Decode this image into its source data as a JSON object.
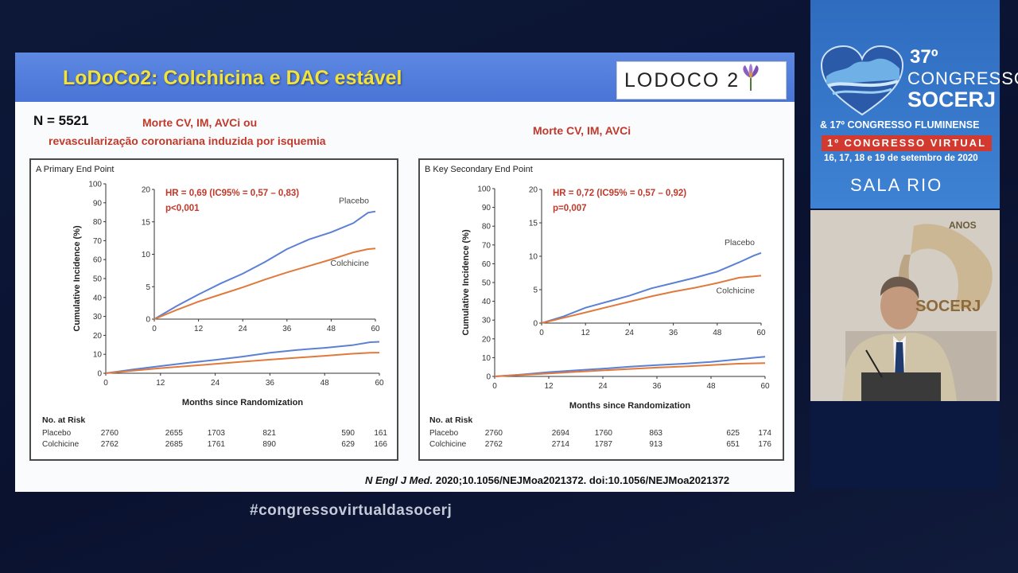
{
  "slide": {
    "title": "LoDoCo2: Colchicina e DAC estável",
    "logo_text": "LODOCO 2",
    "n_label": "N = 5521",
    "endpoint_primary_line1": "Morte CV, IM, AVCi ou",
    "endpoint_primary_line2": "revascularização coronariana induzida por isquemia",
    "endpoint_secondary": "Morte CV, IM, AVCi",
    "citation_journal": "N Engl J Med.",
    "citation_rest": " 2020;10.1056/NEJMoa2021372. doi:10.1056/NEJMoa2021372"
  },
  "chart_data": [
    {
      "type": "line",
      "title": "A  Primary End Point",
      "xlabel": "Months since Randomization",
      "ylabel": "Cumulative Incidence (%)",
      "xlim": [
        0,
        60
      ],
      "ylim": [
        0,
        100
      ],
      "x_ticks": [
        0,
        12,
        24,
        36,
        48,
        60
      ],
      "y_ticks": [
        0,
        10,
        20,
        30,
        40,
        50,
        60,
        70,
        80,
        90,
        100
      ],
      "inset": {
        "ylim": [
          0,
          20
        ],
        "y_ticks": [
          0,
          5,
          10,
          15,
          20
        ],
        "hr_text": "HR = 0,69 (IC95% = 0,57 – 0,83)",
        "p_text": "p<0,001"
      },
      "x": [
        0,
        6,
        12,
        18,
        24,
        30,
        36,
        42,
        48,
        54,
        58,
        60
      ],
      "series": [
        {
          "name": "Placebo",
          "color": "#5b80d4",
          "values": [
            0,
            2.0,
            3.8,
            5.5,
            7.0,
            8.8,
            10.8,
            12.3,
            13.4,
            14.8,
            16.4,
            16.6
          ]
        },
        {
          "name": "Colchicine",
          "color": "#e07a3c",
          "values": [
            0,
            1.4,
            2.7,
            3.8,
            4.9,
            6.1,
            7.2,
            8.2,
            9.2,
            10.3,
            10.8,
            10.9
          ]
        }
      ],
      "at_risk": {
        "header": "No. at Risk",
        "rows": [
          {
            "name": "Placebo",
            "values": [
              "2760",
              "2655",
              "1703",
              "821",
              "590",
              "161"
            ]
          },
          {
            "name": "Colchicine",
            "values": [
              "2762",
              "2685",
              "1761",
              "890",
              "629",
              "166"
            ]
          }
        ]
      }
    },
    {
      "type": "line",
      "title": "B  Key Secondary End Point",
      "xlabel": "Months since Randomization",
      "ylabel": "Cumulative Incidence (%)",
      "xlim": [
        0,
        60
      ],
      "ylim": [
        0,
        100
      ],
      "x_ticks": [
        0,
        12,
        24,
        36,
        48,
        60
      ],
      "y_ticks": [
        0,
        10,
        20,
        30,
        40,
        50,
        60,
        70,
        80,
        90,
        100
      ],
      "inset": {
        "ylim": [
          0,
          20
        ],
        "y_ticks": [
          0,
          5,
          10,
          15,
          20
        ],
        "hr_text": "HR = 0,72 (IC95% = 0,57 – 0,92)",
        "p_text": "p=0,007"
      },
      "x": [
        0,
        6,
        12,
        18,
        24,
        30,
        36,
        42,
        48,
        54,
        58,
        60
      ],
      "series": [
        {
          "name": "Placebo",
          "color": "#5b80d4",
          "values": [
            0,
            1.0,
            2.3,
            3.2,
            4.1,
            5.2,
            6.0,
            6.8,
            7.7,
            9.1,
            10.1,
            10.5
          ]
        },
        {
          "name": "Colchicine",
          "color": "#e07a3c",
          "values": [
            0,
            0.8,
            1.6,
            2.4,
            3.2,
            4.0,
            4.7,
            5.3,
            6.0,
            6.8,
            7.0,
            7.1
          ]
        }
      ],
      "at_risk": {
        "header": "No. at Risk",
        "rows": [
          {
            "name": "Placebo",
            "values": [
              "2760",
              "2694",
              "1760",
              "863",
              "625",
              "174"
            ]
          },
          {
            "name": "Colchicine",
            "values": [
              "2762",
              "2714",
              "1787",
              "913",
              "651",
              "176"
            ]
          }
        ]
      }
    }
  ],
  "footer": {
    "hashtag": "#congressovirtualdasocerj"
  },
  "sidebar": {
    "edition": "37º",
    "congresso": "CONGRESSO",
    "socerj": "SOCERJ",
    "fluminense": "& 17º CONGRESSO FLUMINENSE",
    "virtual": "1º CONGRESSO VIRTUAL",
    "dates": "16, 17, 18 e 19 de setembro de 2020",
    "room": "SALA RIO",
    "anos": "ANOS",
    "anos_socerj": "SOCERJ",
    "brand_color": "#3a7ccd",
    "virtual_color": "#d23a2f"
  }
}
